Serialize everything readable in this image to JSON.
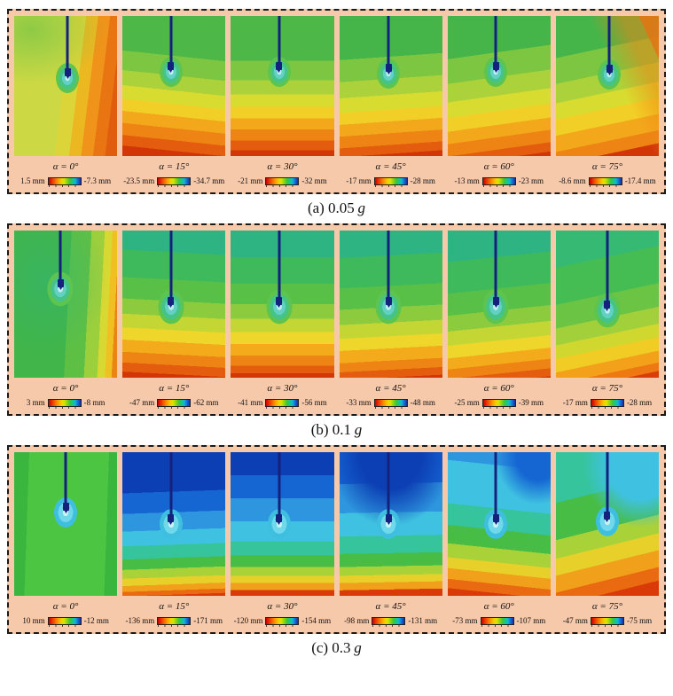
{
  "figure": {
    "panels": [
      {
        "caption": "(a) 0.05",
        "caption_unit": "g",
        "plots": [
          {
            "label": "α = 0°",
            "cb_left": "1.5 mm",
            "cb_right": "-7.3 mm"
          },
          {
            "label": "α = 15°",
            "cb_left": "-23.5 mm",
            "cb_right": "-34.7 mm"
          },
          {
            "label": "α = 30°",
            "cb_left": "-21 mm",
            "cb_right": "-32 mm"
          },
          {
            "label": "α = 45°",
            "cb_left": "-17 mm",
            "cb_right": "-28 mm"
          },
          {
            "label": "α = 60°",
            "cb_left": "-13 mm",
            "cb_right": "-23 mm"
          },
          {
            "label": "α = 75°",
            "cb_left": "-8.6 mm",
            "cb_right": "-17.4 mm"
          }
        ]
      },
      {
        "caption": "(b) 0.1",
        "caption_unit": "g",
        "plots": [
          {
            "label": "α = 0°",
            "cb_left": "3 mm",
            "cb_right": "-8 mm"
          },
          {
            "label": "α = 15°",
            "cb_left": "-47 mm",
            "cb_right": "-62 mm"
          },
          {
            "label": "α = 30°",
            "cb_left": "-41 mm",
            "cb_right": "-56 mm"
          },
          {
            "label": "α = 45°",
            "cb_left": "-33 mm",
            "cb_right": "-48 mm"
          },
          {
            "label": "α = 60°",
            "cb_left": "-25 mm",
            "cb_right": "-39 mm"
          },
          {
            "label": "α = 75°",
            "cb_left": "-17 mm",
            "cb_right": "-28 mm"
          }
        ]
      },
      {
        "caption": "(c) 0.3",
        "caption_unit": "g",
        "plots": [
          {
            "label": "α = 0°",
            "cb_left": "10 mm",
            "cb_right": "-12 mm"
          },
          {
            "label": "α = 15°",
            "cb_left": "-136 mm",
            "cb_right": "-171 mm"
          },
          {
            "label": "α = 30°",
            "cb_left": "-120 mm",
            "cb_right": "-154 mm"
          },
          {
            "label": "α = 45°",
            "cb_left": "-98 mm",
            "cb_right": "-131 mm"
          },
          {
            "label": "α = 60°",
            "cb_left": "-73 mm",
            "cb_right": "-107 mm"
          },
          {
            "label": "α = 75°",
            "cb_left": "-47 mm",
            "cb_right": "-75 mm"
          }
        ]
      }
    ]
  },
  "chart_data": [
    {
      "type": "heatmap",
      "title": "(a) 0.05 g",
      "categories": [
        "α = 0°",
        "α = 15°",
        "α = 30°",
        "α = 45°",
        "α = 60°",
        "α = 75°"
      ],
      "series": [
        {
          "name": "colorbar max (mm, red end)",
          "values": [
            1.5,
            -23.5,
            -21,
            -17,
            -13,
            -8.6
          ]
        },
        {
          "name": "colorbar min (mm, blue end)",
          "values": [
            -7.3,
            -34.7,
            -32,
            -28,
            -23,
            -17.4
          ]
        }
      ],
      "colormap": "rainbow red-to-blue",
      "legend_position": "below each subplot"
    },
    {
      "type": "heatmap",
      "title": "(b) 0.1 g",
      "categories": [
        "α = 0°",
        "α = 15°",
        "α = 30°",
        "α = 45°",
        "α = 60°",
        "α = 75°"
      ],
      "series": [
        {
          "name": "colorbar max (mm, red end)",
          "values": [
            3,
            -47,
            -41,
            -33,
            -25,
            -17
          ]
        },
        {
          "name": "colorbar min (mm, blue end)",
          "values": [
            -8,
            -62,
            -56,
            -48,
            -39,
            -28
          ]
        }
      ],
      "colormap": "rainbow red-to-blue",
      "legend_position": "below each subplot"
    },
    {
      "type": "heatmap",
      "title": "(c) 0.3 g",
      "categories": [
        "α = 0°",
        "α = 15°",
        "α = 30°",
        "α = 45°",
        "α = 60°",
        "α = 75°"
      ],
      "series": [
        {
          "name": "colorbar max (mm, red end)",
          "values": [
            10,
            -136,
            -120,
            -98,
            -73,
            -47
          ]
        },
        {
          "name": "colorbar min (mm, blue end)",
          "values": [
            -12,
            -171,
            -154,
            -131,
            -107,
            -75
          ]
        }
      ],
      "colormap": "rainbow red-to-blue",
      "legend_position": "below each subplot"
    }
  ]
}
